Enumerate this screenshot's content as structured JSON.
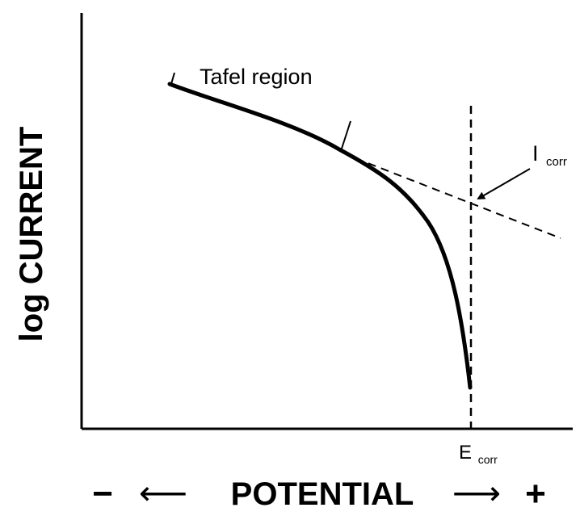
{
  "diagram": {
    "tafel_label": "Tafel region",
    "icorr": {
      "main": "I",
      "sub": "corr"
    },
    "ecorr": {
      "main": "E",
      "sub": "corr"
    },
    "y_axis_label": "log CURRENT",
    "x_axis": {
      "minus": "−",
      "left_arrow": "⟵",
      "label": "POTENTIAL",
      "right_arrow": "⟶",
      "plus": "+"
    }
  }
}
